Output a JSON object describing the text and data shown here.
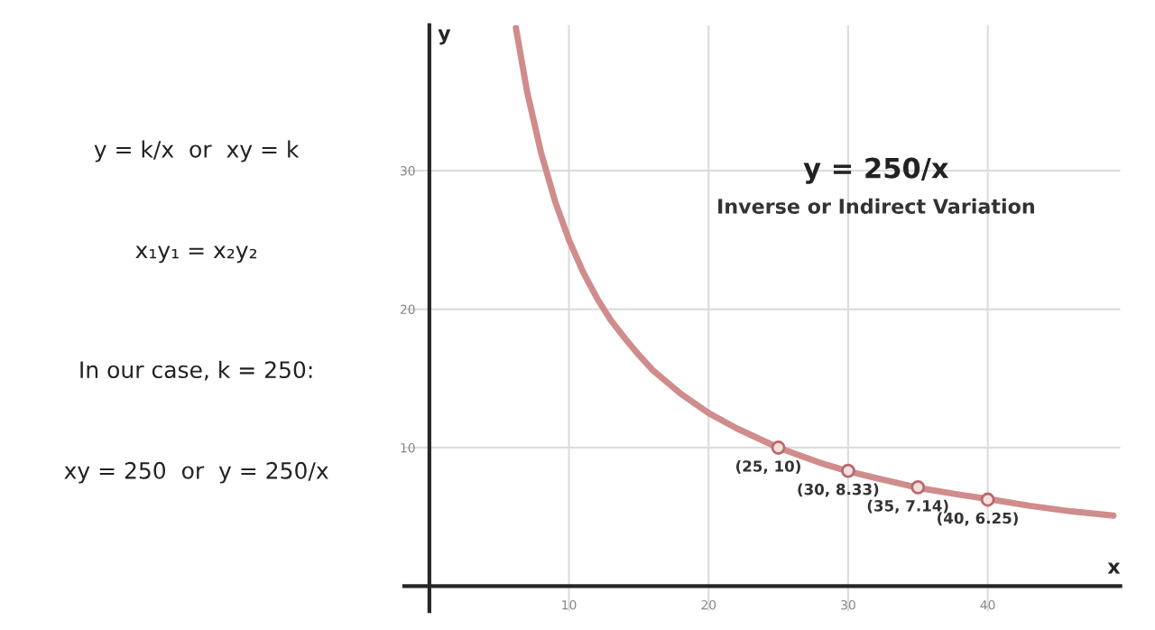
{
  "chart_data": {
    "type": "line",
    "title": "y = 250/x",
    "subtitle": "Inverse or Indirect Variation",
    "xlabel": "x",
    "ylabel": "y",
    "xlim": [
      -1.8,
      49.5
    ],
    "ylim": [
      -1.8,
      40.5
    ],
    "xticks": [
      10,
      20,
      30,
      40
    ],
    "yticks": [
      10,
      20,
      30
    ],
    "grid": true,
    "line_style": "solid",
    "series": [
      {
        "color": "#d08c8c",
        "marker": "none",
        "x": [
          6.2,
          7,
          8,
          9,
          10,
          11,
          12,
          13,
          14,
          15,
          16,
          18,
          20,
          22,
          25,
          28,
          30,
          32,
          35,
          38,
          40,
          43,
          46,
          49
        ],
        "values": [
          40.3,
          35.7,
          31.3,
          27.8,
          25,
          22.7,
          20.8,
          19.2,
          17.9,
          16.7,
          15.6,
          13.9,
          12.5,
          11.4,
          10,
          8.9,
          8.3,
          7.8,
          7.1,
          6.6,
          6.3,
          5.8,
          5.4,
          5.1
        ]
      },
      {
        "type": "scatter",
        "color": "#b86a6a",
        "marker": "circle",
        "x": [
          25,
          30,
          35,
          40
        ],
        "values": [
          10,
          8.33,
          7.14,
          6.25
        ]
      }
    ],
    "annotations": [
      {
        "text": "(25, 10)",
        "x": 25,
        "y": 10
      },
      {
        "text": "(30, 8.33)",
        "x": 30,
        "y": 8.33
      },
      {
        "text": "(35, 7.14)",
        "x": 35,
        "y": 7.14
      },
      {
        "text": "(40, 6.25)",
        "x": 40,
        "y": 6.25
      },
      "y = k/x  or  xy = k",
      "x₁y₁ = x₂y₂",
      "In our case, k = 250:",
      "xy = 250  or  y = 250/x"
    ]
  }
}
